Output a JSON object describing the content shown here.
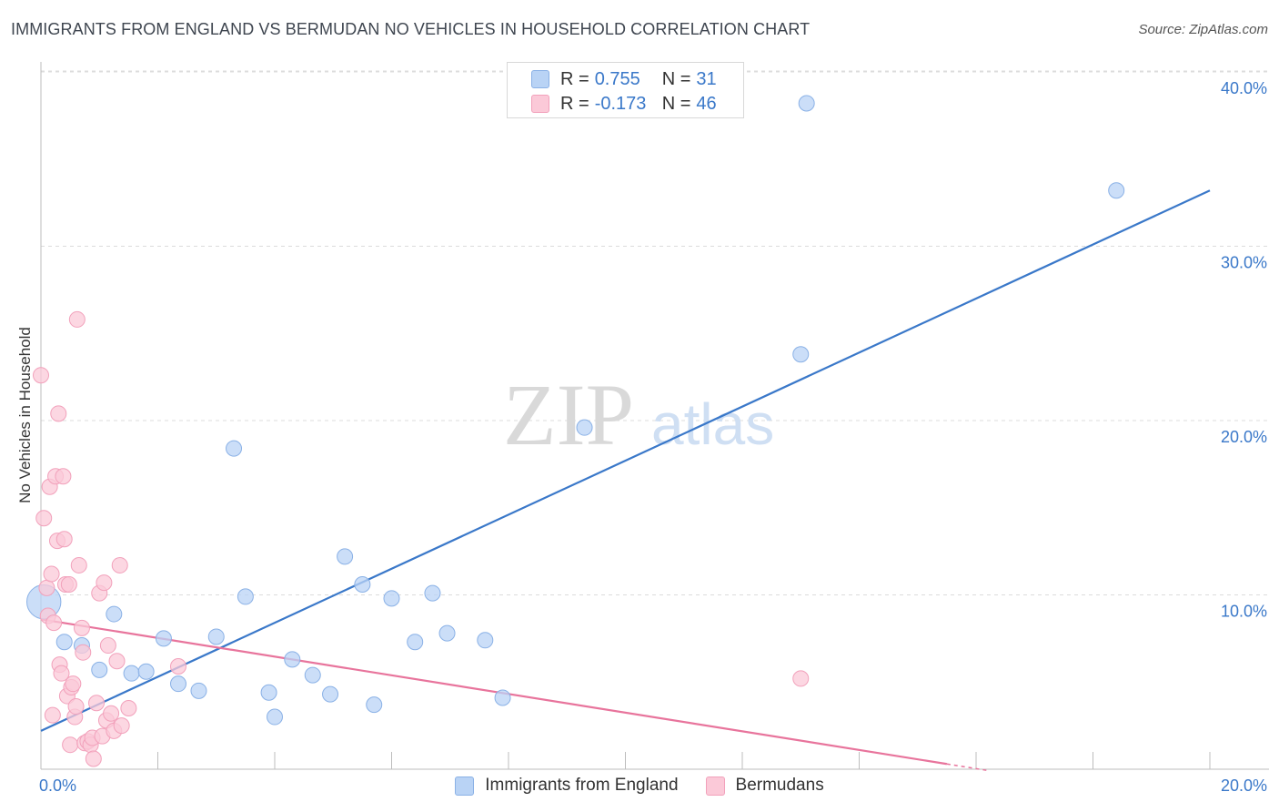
{
  "title": "IMMIGRANTS FROM ENGLAND VS BERMUDAN NO VEHICLES IN HOUSEHOLD CORRELATION CHART",
  "source": "Source: ZipAtlas.com",
  "watermark": {
    "zip": "ZIP",
    "atlas": "atlas"
  },
  "legend": {
    "rows": [
      {
        "r_label": "R =",
        "r_value": "0.755",
        "n_label": "N =",
        "n_value": "31",
        "color": "#b9d3f5",
        "border": "#8ab1e6"
      },
      {
        "r_label": "R =",
        "r_value": "-0.173",
        "n_label": "N =",
        "n_value": "46",
        "color": "#fbc9d8",
        "border": "#f2a1bb"
      }
    ]
  },
  "bottom_legend": [
    {
      "label": "Immigrants from England",
      "color": "#b9d3f5",
      "border": "#8ab1e6"
    },
    {
      "label": "Bermudans",
      "color": "#fbc9d8",
      "border": "#f2a1bb"
    }
  ],
  "chart_data": {
    "type": "scatter",
    "xlabel": "",
    "ylabel": "No Vehicles in Household",
    "xlim": [
      0,
      20
    ],
    "ylim": [
      0,
      40
    ],
    "x_tick_labels": [
      "0.0%",
      "20.0%"
    ],
    "y_ticks": [
      10,
      20,
      30,
      40
    ],
    "y_tick_labels": [
      "10.0%",
      "20.0%",
      "30.0%",
      "40.0%"
    ],
    "grid": true,
    "series": [
      {
        "name": "Immigrants from England",
        "color": "#3a78c9",
        "fill": "#b9d3f5",
        "trend": {
          "x": [
            0,
            20
          ],
          "y": [
            2.2,
            33.2
          ]
        },
        "points": [
          [
            0.05,
            9.6,
            2.2
          ],
          [
            0.4,
            7.3,
            1
          ],
          [
            0.7,
            7.1,
            1
          ],
          [
            1.0,
            5.7,
            1
          ],
          [
            1.25,
            8.9,
            1
          ],
          [
            1.55,
            5.5,
            1
          ],
          [
            1.8,
            5.6,
            1
          ],
          [
            2.1,
            7.5,
            1
          ],
          [
            2.35,
            4.9,
            1
          ],
          [
            2.7,
            4.5,
            1
          ],
          [
            3.0,
            7.6,
            1
          ],
          [
            3.3,
            18.4,
            1
          ],
          [
            3.5,
            9.9,
            1
          ],
          [
            3.9,
            4.4,
            1
          ],
          [
            4.0,
            3.0,
            1
          ],
          [
            4.3,
            6.3,
            1
          ],
          [
            4.65,
            5.4,
            1
          ],
          [
            4.95,
            4.3,
            1
          ],
          [
            5.2,
            12.2,
            1
          ],
          [
            5.5,
            10.6,
            1
          ],
          [
            5.7,
            3.7,
            1
          ],
          [
            6.0,
            9.8,
            1
          ],
          [
            6.4,
            7.3,
            1
          ],
          [
            6.7,
            10.1,
            1
          ],
          [
            6.95,
            7.8,
            1
          ],
          [
            7.6,
            7.4,
            1
          ],
          [
            7.9,
            4.1,
            1
          ],
          [
            9.3,
            19.6,
            1
          ],
          [
            13.0,
            23.8,
            1
          ],
          [
            13.1,
            38.2,
            1
          ],
          [
            18.4,
            33.2,
            1
          ]
        ]
      },
      {
        "name": "Bermudans",
        "color": "#e8749c",
        "fill": "#fbc9d8",
        "trend": {
          "x": [
            0,
            15.5
          ],
          "y": [
            8.6,
            0.3
          ]
        },
        "points": [
          [
            0.0,
            22.6
          ],
          [
            0.05,
            14.4
          ],
          [
            0.1,
            10.4
          ],
          [
            0.12,
            8.8
          ],
          [
            0.15,
            16.2
          ],
          [
            0.18,
            11.2
          ],
          [
            0.2,
            3.1
          ],
          [
            0.22,
            8.4
          ],
          [
            0.25,
            16.8
          ],
          [
            0.28,
            13.1
          ],
          [
            0.3,
            20.4
          ],
          [
            0.32,
            6.0
          ],
          [
            0.35,
            5.5
          ],
          [
            0.38,
            16.8
          ],
          [
            0.4,
            13.2
          ],
          [
            0.42,
            10.6
          ],
          [
            0.45,
            4.2
          ],
          [
            0.48,
            10.6
          ],
          [
            0.5,
            1.4
          ],
          [
            0.52,
            4.7
          ],
          [
            0.55,
            4.9
          ],
          [
            0.58,
            3.0
          ],
          [
            0.6,
            3.6
          ],
          [
            0.62,
            25.8
          ],
          [
            0.65,
            11.7
          ],
          [
            0.7,
            8.1
          ],
          [
            0.72,
            6.7
          ],
          [
            0.75,
            1.5
          ],
          [
            0.8,
            1.6
          ],
          [
            0.85,
            1.4
          ],
          [
            0.88,
            1.8
          ],
          [
            0.9,
            0.6
          ],
          [
            0.95,
            3.8
          ],
          [
            1.0,
            10.1
          ],
          [
            1.05,
            1.9
          ],
          [
            1.08,
            10.7
          ],
          [
            1.12,
            2.8
          ],
          [
            1.15,
            7.1
          ],
          [
            1.2,
            3.2
          ],
          [
            1.25,
            2.2
          ],
          [
            1.3,
            6.2
          ],
          [
            1.35,
            11.7
          ],
          [
            1.38,
            2.5
          ],
          [
            1.5,
            3.5
          ],
          [
            2.35,
            5.9
          ],
          [
            13.0,
            5.2
          ]
        ]
      }
    ]
  }
}
